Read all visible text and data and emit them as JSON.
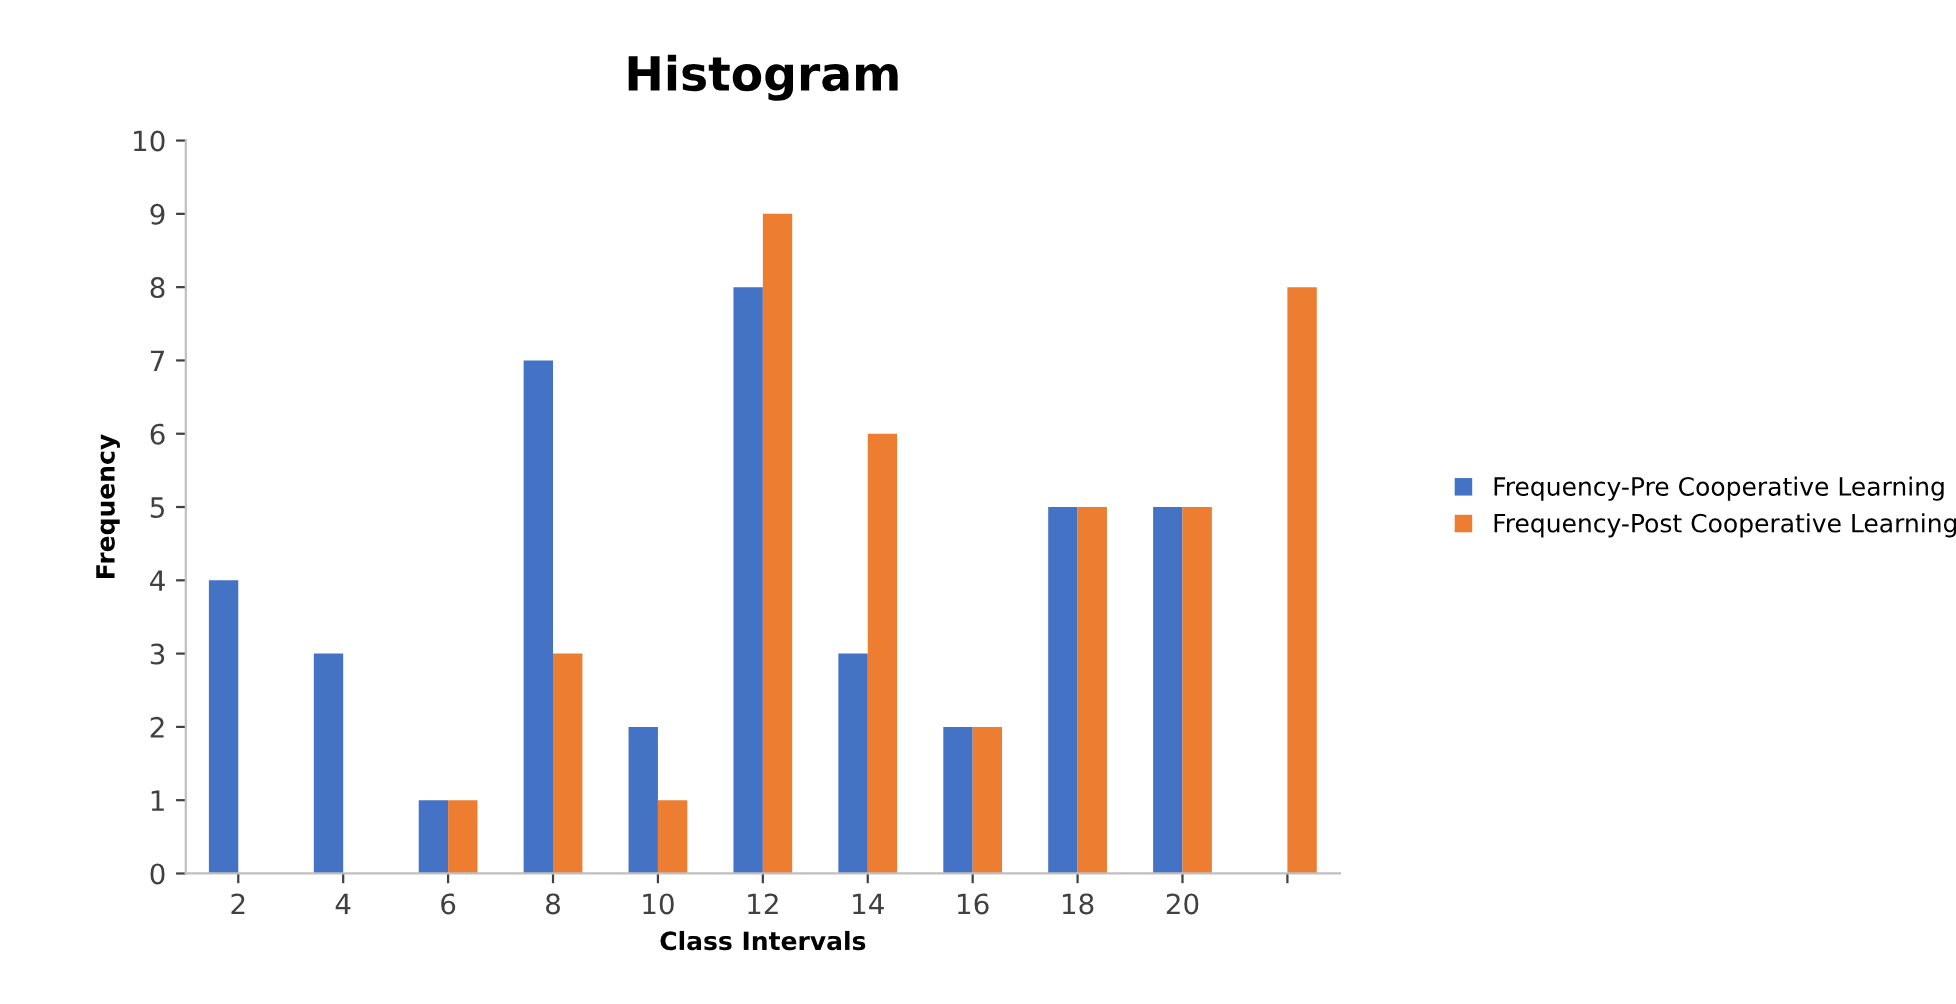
{
  "chart_data": {
    "type": "bar",
    "title": "Histogram",
    "xlabel": "Class Intervals",
    "ylabel": "Frequency",
    "categories": [
      "2",
      "4",
      "6",
      "8",
      "10",
      "12",
      "14",
      "16",
      "18",
      "20",
      null
    ],
    "series": [
      {
        "name": "Frequency-Pre Cooperative Learning",
        "color": "#4472c4",
        "values": [
          4,
          3,
          1,
          7,
          2,
          8,
          3,
          2,
          5,
          5,
          0
        ]
      },
      {
        "name": "Frequency-Post Cooperative Learning",
        "color": "#ed7d31",
        "values": [
          0,
          0,
          1,
          3,
          1,
          9,
          6,
          2,
          5,
          5,
          8
        ]
      }
    ],
    "ylim": [
      0,
      10
    ],
    "yticks": [
      0,
      1,
      2,
      3,
      4,
      5,
      6,
      7,
      8,
      9,
      10
    ],
    "grid": false,
    "legend": "right"
  }
}
